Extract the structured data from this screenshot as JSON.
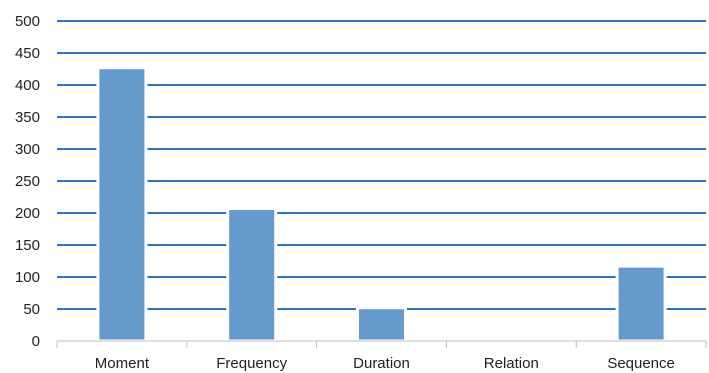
{
  "chart_data": {
    "type": "bar",
    "title": "",
    "xlabel": "",
    "ylabel": "",
    "categories": [
      "Moment",
      "Frequency",
      "Duration",
      "Relation",
      "Sequence"
    ],
    "values": [
      427,
      207,
      52,
      0,
      117
    ],
    "ylim": [
      0,
      500
    ],
    "yticks": [
      "0",
      "50",
      "100",
      "150",
      "200",
      "250",
      "300",
      "350",
      "400",
      "450",
      "500"
    ],
    "grid": true,
    "legend": "none",
    "colors": {
      "bar": "#6699cc",
      "grid": "#2e75b6",
      "axis": "#bfbfbf",
      "text": "#222222"
    }
  }
}
